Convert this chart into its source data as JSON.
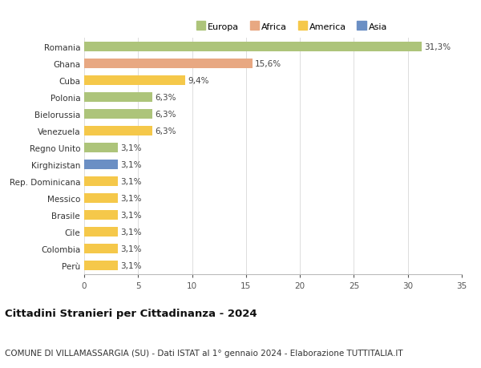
{
  "categories": [
    "Perù",
    "Colombia",
    "Cile",
    "Brasile",
    "Messico",
    "Rep. Dominicana",
    "Kirghizistan",
    "Regno Unito",
    "Venezuela",
    "Bielorussia",
    "Polonia",
    "Cuba",
    "Ghana",
    "Romania"
  ],
  "values": [
    3.1,
    3.1,
    3.1,
    3.1,
    3.1,
    3.1,
    3.1,
    3.1,
    6.3,
    6.3,
    6.3,
    9.4,
    15.6,
    31.3
  ],
  "colors": [
    "#f5c84a",
    "#f5c84a",
    "#f5c84a",
    "#f5c84a",
    "#f5c84a",
    "#f5c84a",
    "#6b8fc4",
    "#adc47a",
    "#f5c84a",
    "#adc47a",
    "#adc47a",
    "#f5c84a",
    "#e8a882",
    "#adc47a"
  ],
  "labels": [
    "3,1%",
    "3,1%",
    "3,1%",
    "3,1%",
    "3,1%",
    "3,1%",
    "3,1%",
    "3,1%",
    "6,3%",
    "6,3%",
    "6,3%",
    "9,4%",
    "15,6%",
    "31,3%"
  ],
  "legend_labels": [
    "Europa",
    "Africa",
    "America",
    "Asia"
  ],
  "legend_colors": [
    "#adc47a",
    "#e8a882",
    "#f5c84a",
    "#6b8fc4"
  ],
  "title": "Cittadini Stranieri per Cittadinanza - 2024",
  "subtitle": "COMUNE DI VILLAMASSARGIA (SU) - Dati ISTAT al 1° gennaio 2024 - Elaborazione TUTTITALIA.IT",
  "xlim": [
    0,
    35
  ],
  "xticks": [
    0,
    5,
    10,
    15,
    20,
    25,
    30,
    35
  ],
  "bar_height": 0.55,
  "background_color": "#ffffff",
  "grid_color": "#dddddd",
  "label_fontsize": 7.5,
  "tick_fontsize": 7.5,
  "title_fontsize": 9.5,
  "subtitle_fontsize": 7.5
}
